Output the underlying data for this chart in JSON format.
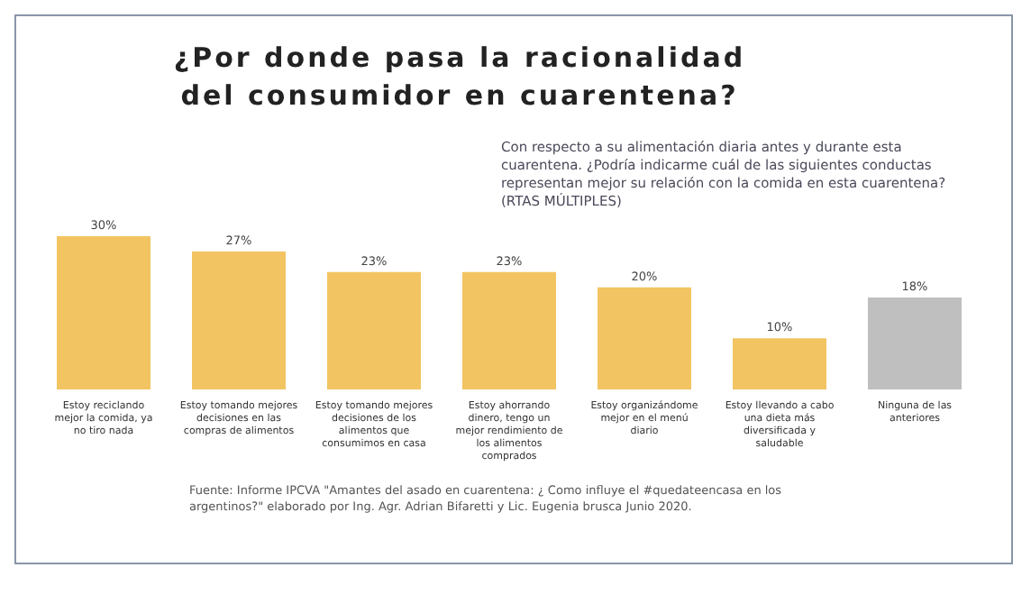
{
  "chart_data": {
    "type": "bar",
    "title": "¿Por donde pasa la racionalidad del consumidor en cuarentena?",
    "subtitle": "Con respecto a su alimentación diaria antes y durante esta cuarentena. ¿Podría indicarme cuál de las siguientes conductas representan mejor su relación con la comida en esta cuarentena? (RTAS MÚLTIPLES)",
    "categories": [
      "Estoy reciclando mejor la comida, ya no tiro nada",
      "Estoy tomando mejores decisiones en las compras de alimentos",
      "Estoy tomando mejores decisiones de los alimentos que consumimos en casa",
      "Estoy ahorrando dinero, tengo un mejor rendimiento de los alimentos comprados",
      "Estoy organizándome mejor en el menú diario",
      "Estoy llevando a cabo una dieta más diversificada y saludable",
      "Ninguna de las anteriores"
    ],
    "values": [
      30,
      27,
      23,
      23,
      20,
      10,
      18
    ],
    "value_labels": [
      "30%",
      "27%",
      "23%",
      "23%",
      "20%",
      "10%",
      "18%"
    ],
    "colors": [
      "#f2c462",
      "#f2c462",
      "#f2c462",
      "#f2c462",
      "#f2c462",
      "#f2c462",
      "#bfbfbf"
    ],
    "grid": false,
    "annotations": [
      "Fuente: Informe IPCVA \"Amantes del asado en cuarentena: ¿ Como influye el #quedateencasa en los argentinos?\" elaborado por Ing. Agr. Adrian Bifaretti y Lic. Eugenia brusca Junio 2020."
    ]
  }
}
